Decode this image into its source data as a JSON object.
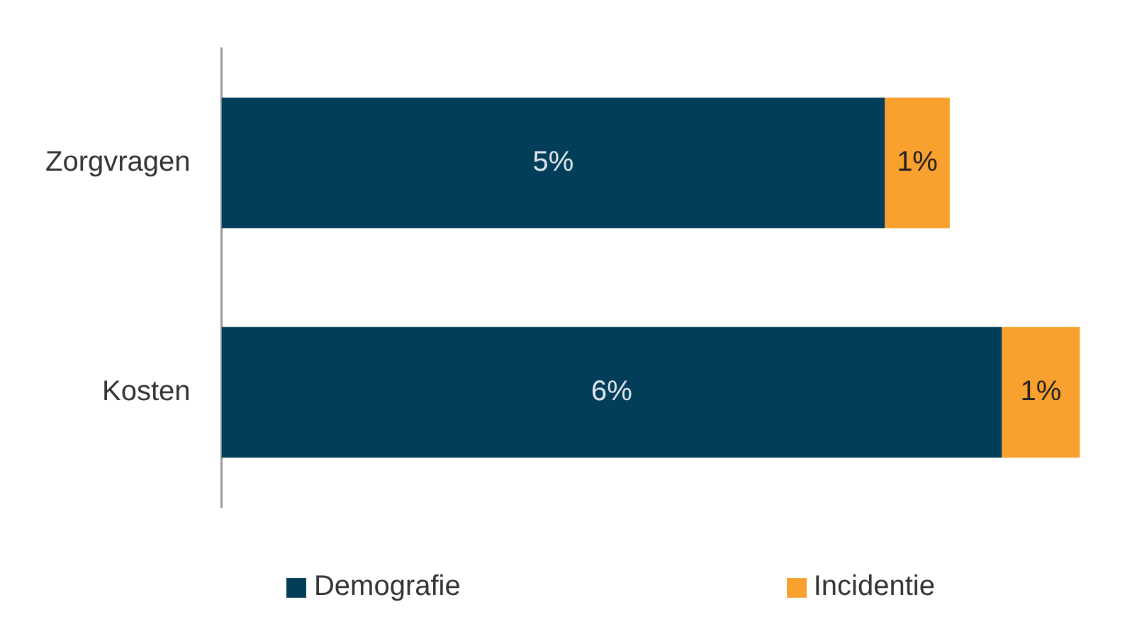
{
  "chart_data": {
    "type": "bar",
    "orientation": "horizontal",
    "stacked": true,
    "categories": [
      "Zorgvragen",
      "Kosten"
    ],
    "series": [
      {
        "name": "Demografie",
        "color": "#023e5a",
        "values": [
          5.1,
          6.0
        ],
        "value_labels": [
          "5%",
          "6%"
        ]
      },
      {
        "name": "Incidentie",
        "color": "#f9a12e",
        "values": [
          0.5,
          0.6
        ],
        "value_labels": [
          "1%",
          "1%"
        ]
      }
    ],
    "legend": "bottom"
  }
}
